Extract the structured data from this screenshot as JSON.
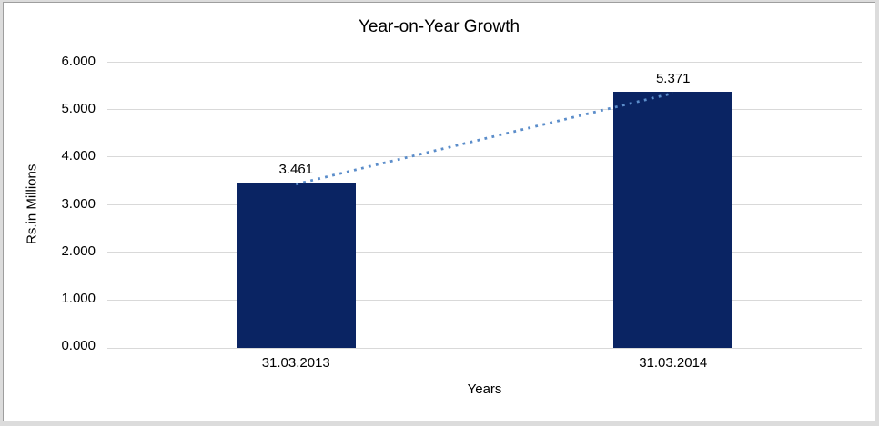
{
  "chart_data": {
    "type": "bar",
    "title": "Year-on-Year Growth",
    "xlabel": "Years",
    "ylabel": "Rs.in Millions",
    "categories": [
      "31.03.2013",
      "31.03.2014"
    ],
    "values": [
      3.461,
      5.371
    ],
    "value_labels": [
      "3.461",
      "5.371"
    ],
    "ylim": [
      0,
      6
    ],
    "ytick_labels": [
      "6.000",
      "5.000",
      "4.000",
      "3.000",
      "2.000",
      "1.000",
      "0.000"
    ],
    "grid": true,
    "legend": false,
    "bar_color": "#0a2463",
    "grid_color": "#d9d9d9",
    "text_color": "#000000",
    "trendline": {
      "style": "dotted",
      "color": "#5b8dca",
      "from_value": 3.461,
      "to_value": 5.371
    }
  }
}
